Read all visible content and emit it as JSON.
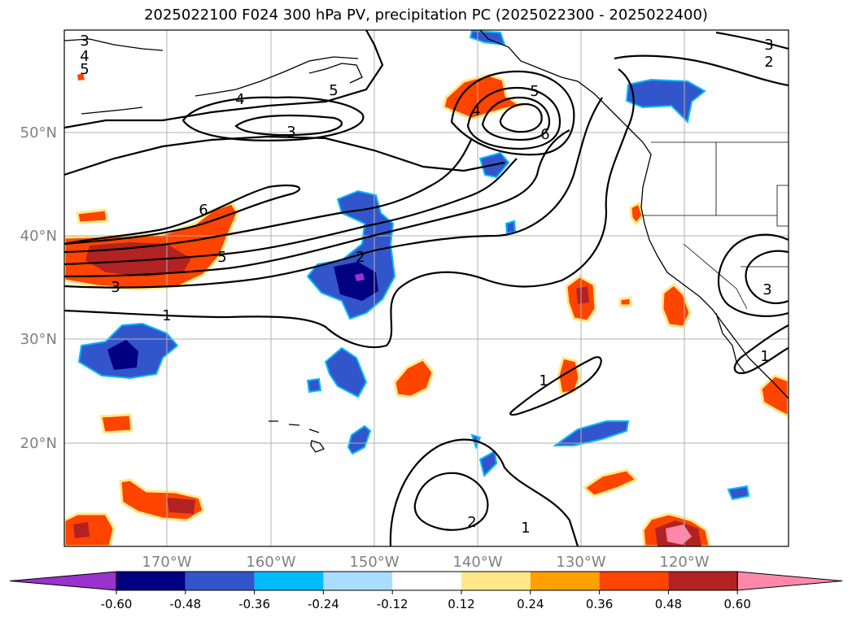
{
  "title": "2025022100 F024 300 hPa PV, precipitation PC (2025022300 - 2025022400)",
  "lat_labels": [
    "50°N",
    "40°N",
    "30°N",
    "20°N"
  ],
  "lon_labels": [
    "170°W",
    "160°W",
    "150°W",
    "140°W",
    "130°W",
    "120°W"
  ],
  "contour_labels": [
    "3",
    "4",
    "5",
    "4",
    "5",
    "3",
    "5",
    "4",
    "6",
    "3",
    "2",
    "6",
    "5",
    "3",
    "2",
    "1",
    "3",
    "1",
    "1",
    "2",
    "1"
  ],
  "colorbar": {
    "colors": [
      "#9933cc",
      "#000080",
      "#3355cc",
      "#00bbff",
      "#aaddff",
      "#ffffff",
      "#ffe88a",
      "#ffa000",
      "#ff4400",
      "#b22222",
      "#ff88aa"
    ],
    "tick_labels": [
      "-0.60",
      "-0.48",
      "-0.36",
      "-0.24",
      "-0.12",
      "0.12",
      "0.24",
      "0.36",
      "0.48",
      "0.60"
    ]
  }
}
